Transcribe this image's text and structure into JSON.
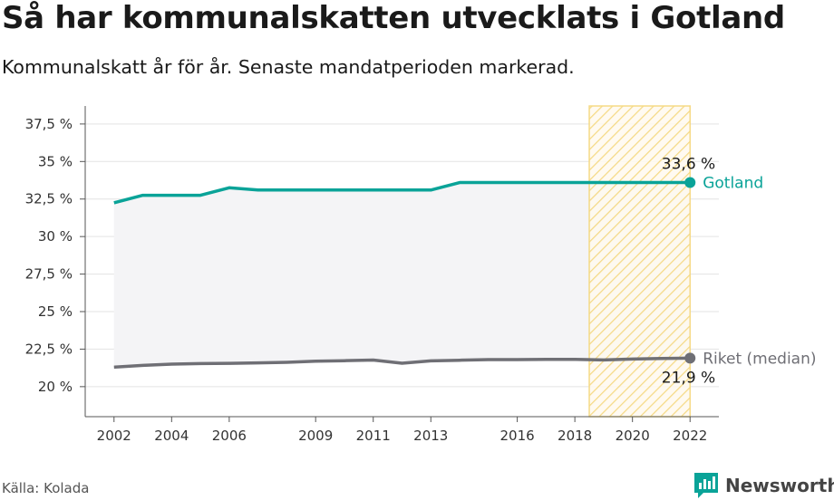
{
  "header": {
    "title": "Så har kommunalskatten utvecklats i Gotland",
    "subtitle": "Kommunalskatt år för år. Senaste mandatperioden markerad."
  },
  "footer": {
    "source": "Källa: Kolada",
    "brand": "Newsworthy",
    "brand_icon": "newsworthy-logo-icon"
  },
  "colors": {
    "gotland": "#0aa398",
    "riket": "#6f6f75",
    "highlight": "#f5d77a",
    "band": "#f4f4f6"
  },
  "chart_data": {
    "type": "line",
    "x": [
      2002,
      2003,
      2004,
      2005,
      2006,
      2007,
      2008,
      2009,
      2010,
      2011,
      2012,
      2013,
      2014,
      2015,
      2016,
      2017,
      2018,
      2019,
      2020,
      2021,
      2022
    ],
    "x_ticks": [
      2002,
      2004,
      2006,
      2009,
      2011,
      2013,
      2016,
      2018,
      2020,
      2022
    ],
    "y_ticks": [
      20,
      22.5,
      25,
      27.5,
      30,
      32.5,
      35,
      37.5
    ],
    "y_tick_labels": [
      "20 %",
      "22,5 %",
      "25 %",
      "27,5 %",
      "30 %",
      "32,5 %",
      "35 %",
      "37,5 %"
    ],
    "ylim": [
      18,
      38.7
    ],
    "xlim": [
      2001,
      2023
    ],
    "highlight_range": [
      2018.5,
      2022
    ],
    "grid": true,
    "series": [
      {
        "name": "Gotland",
        "values": [
          32.25,
          32.75,
          32.75,
          32.75,
          33.25,
          33.1,
          33.1,
          33.1,
          33.1,
          33.1,
          33.1,
          33.1,
          33.6,
          33.6,
          33.6,
          33.6,
          33.6,
          33.6,
          33.6,
          33.6,
          33.6
        ],
        "end_label": "33,6 %"
      },
      {
        "name": "Riket (median)",
        "values": [
          21.3,
          21.42,
          21.5,
          21.54,
          21.55,
          21.58,
          21.62,
          21.7,
          21.73,
          21.77,
          21.56,
          21.72,
          21.76,
          21.8,
          21.8,
          21.82,
          21.82,
          21.78,
          21.84,
          21.88,
          21.9
        ],
        "end_label": "21,9 %"
      }
    ]
  }
}
